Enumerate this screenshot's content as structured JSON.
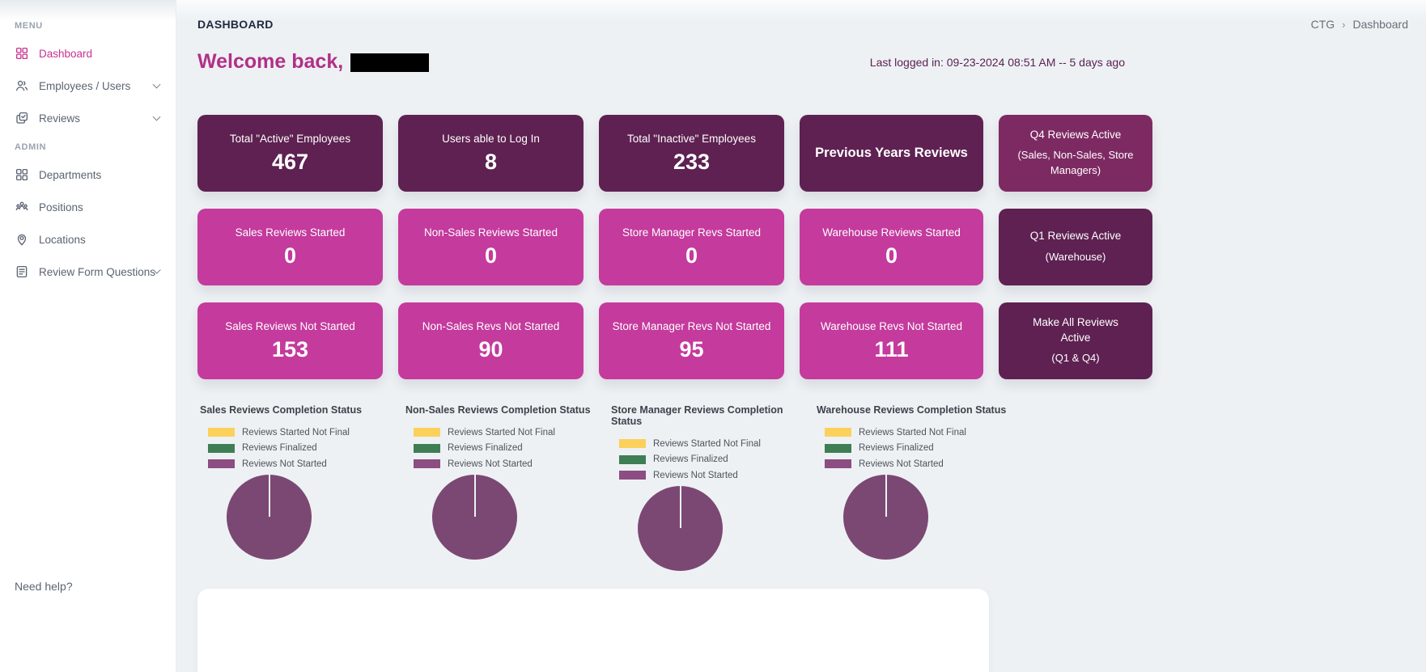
{
  "colors": {
    "accent_pink": "#c93190",
    "card_dark": "#5e2152",
    "card_mid": "#7d2a63",
    "card_pink": "#c43a9d",
    "main_bg": "#edf1f4",
    "title_navy": "#1f2a3d",
    "last_login_plum": "#5c2150",
    "legend_yellow": "#fbd05c",
    "legend_green": "#3f7d54",
    "legend_purple": "#8b4d82",
    "pie_purple": "#7b4873"
  },
  "sidebar": {
    "sections": [
      {
        "label": "MENU",
        "items": [
          {
            "label": "Dashboard",
            "icon": "dashboard-grid-icon",
            "active": true,
            "chevron": false
          },
          {
            "label": "Employees / Users",
            "icon": "users-icon",
            "active": false,
            "chevron": true
          },
          {
            "label": "Reviews",
            "icon": "reviews-check-icon",
            "active": false,
            "chevron": true
          }
        ]
      },
      {
        "label": "ADMIN",
        "items": [
          {
            "label": "Departments",
            "icon": "departments-grid-icon",
            "active": false,
            "chevron": false
          },
          {
            "label": "Positions",
            "icon": "positions-people-icon",
            "active": false,
            "chevron": false
          },
          {
            "label": "Locations",
            "icon": "location-pin-icon",
            "active": false,
            "chevron": false
          },
          {
            "label": "Review Form Questions",
            "icon": "form-document-icon",
            "active": false,
            "chevron": true
          }
        ]
      }
    ],
    "footer": "Need help?"
  },
  "header": {
    "page_title": "DASHBOARD",
    "breadcrumb": {
      "root": "CTG",
      "separator": "›",
      "current": "Dashboard"
    },
    "welcome": "Welcome back,",
    "last_login": "Last logged in: 09-23-2024 08:51 AM -- 5 days ago"
  },
  "stat_cards": {
    "rows": [
      [
        {
          "label": "Total \"Active\" Employees",
          "value": "467",
          "variant": "dark",
          "interactable": false
        },
        {
          "label": "Users able to Log In",
          "value": "8",
          "variant": "dark",
          "interactable": false
        },
        {
          "label": "Total \"Inactive\" Employees",
          "value": "233",
          "variant": "dark",
          "interactable": false
        },
        {
          "label": "Previous Years Reviews",
          "variant": "dark",
          "big": true,
          "interactable": true
        },
        {
          "label": "Q4 Reviews Active",
          "sublabel": "(Sales, Non-Sales, Store Managers)",
          "variant": "mid",
          "interactable": true
        }
      ],
      [
        {
          "label": "Sales Reviews Started",
          "value": "0",
          "variant": "pink",
          "interactable": false
        },
        {
          "label": "Non-Sales Reviews Started",
          "value": "0",
          "variant": "pink",
          "interactable": false
        },
        {
          "label": "Store Manager Revs Started",
          "value": "0",
          "variant": "pink",
          "interactable": false
        },
        {
          "label": "Warehouse Reviews Started",
          "value": "0",
          "variant": "pink",
          "interactable": false
        },
        {
          "label": "Q1 Reviews Active",
          "sublabel": "(Warehouse)",
          "variant": "dark",
          "interactable": true
        }
      ],
      [
        {
          "label": "Sales Reviews Not Started",
          "value": "153",
          "variant": "pink",
          "interactable": false
        },
        {
          "label": "Non-Sales Revs Not Started",
          "value": "90",
          "variant": "pink",
          "interactable": false
        },
        {
          "label": "Store Manager Revs Not Started",
          "value": "95",
          "variant": "pink",
          "interactable": false
        },
        {
          "label": "Warehouse Revs Not Started",
          "value": "111",
          "variant": "pink",
          "interactable": false
        },
        {
          "label": "Make All Reviews Active",
          "sublabel": "(Q1 & Q4)",
          "variant": "dark",
          "narrow": true,
          "interactable": true
        }
      ]
    ]
  },
  "chart_data": [
    {
      "type": "pie",
      "title": "Sales Reviews Completion Status",
      "legend": [
        "Reviews Started Not Final",
        "Reviews Finalized",
        "Reviews Not Started"
      ],
      "legend_colors": [
        "#fbd05c",
        "#3f7d54",
        "#8b4d82"
      ],
      "values_pct": [
        0,
        0,
        100
      ],
      "legend_position": "top"
    },
    {
      "type": "pie",
      "title": "Non-Sales Reviews Completion Status",
      "legend": [
        "Reviews Started Not Final",
        "Reviews Finalized",
        "Reviews Not Started"
      ],
      "legend_colors": [
        "#fbd05c",
        "#3f7d54",
        "#8b4d82"
      ],
      "values_pct": [
        0,
        0,
        100
      ],
      "legend_position": "top"
    },
    {
      "type": "pie",
      "title": "Store Manager Reviews Completion Status",
      "legend": [
        "Reviews Started Not Final",
        "Reviews Finalized",
        "Reviews Not Started"
      ],
      "legend_colors": [
        "#fbd05c",
        "#3f7d54",
        "#8b4d82"
      ],
      "values_pct": [
        0,
        0,
        100
      ],
      "legend_position": "top"
    },
    {
      "type": "pie",
      "title": "Warehouse Reviews Completion Status",
      "legend": [
        "Reviews Started Not Final",
        "Reviews Finalized",
        "Reviews Not Started"
      ],
      "legend_colors": [
        "#fbd05c",
        "#3f7d54",
        "#8b4d82"
      ],
      "values_pct": [
        0,
        0,
        100
      ],
      "legend_position": "top"
    }
  ]
}
